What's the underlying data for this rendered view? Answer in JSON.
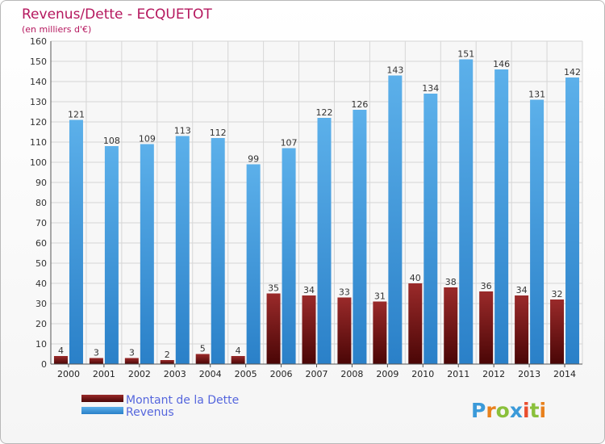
{
  "chart_data": {
    "type": "bar",
    "title": "Revenus/Dette - ECQUETOT",
    "subtitle": "(en milliers d'€)",
    "categories": [
      "2000",
      "2001",
      "2002",
      "2003",
      "2004",
      "2005",
      "2006",
      "2007",
      "2008",
      "2009",
      "2010",
      "2011",
      "2012",
      "2013",
      "2014"
    ],
    "series": [
      {
        "name": "Montant de la Dette",
        "color": "#7a0f12",
        "values": [
          4,
          3,
          3,
          2,
          5,
          4,
          35,
          34,
          33,
          31,
          40,
          38,
          36,
          34,
          32
        ]
      },
      {
        "name": "Revenus",
        "color": "#3a95dc",
        "values": [
          121,
          108,
          109,
          113,
          112,
          99,
          107,
          122,
          126,
          143,
          134,
          151,
          146,
          131,
          142
        ]
      }
    ],
    "ylim": [
      0,
      160
    ],
    "yticks": [
      0,
      10,
      20,
      30,
      40,
      50,
      60,
      70,
      80,
      90,
      100,
      110,
      120,
      130,
      140,
      150,
      160
    ],
    "grid": true,
    "legend_position": "bottom-left",
    "title_color": "#b5175e",
    "legend_text_color": "#5566dd"
  },
  "logo": {
    "text": "Proxiti",
    "colors": [
      "#3b9ad9",
      "#e8811d",
      "#8ac03b",
      "#3b9ad9",
      "#e94e2e",
      "#8ac03b",
      "#e8811d"
    ]
  }
}
